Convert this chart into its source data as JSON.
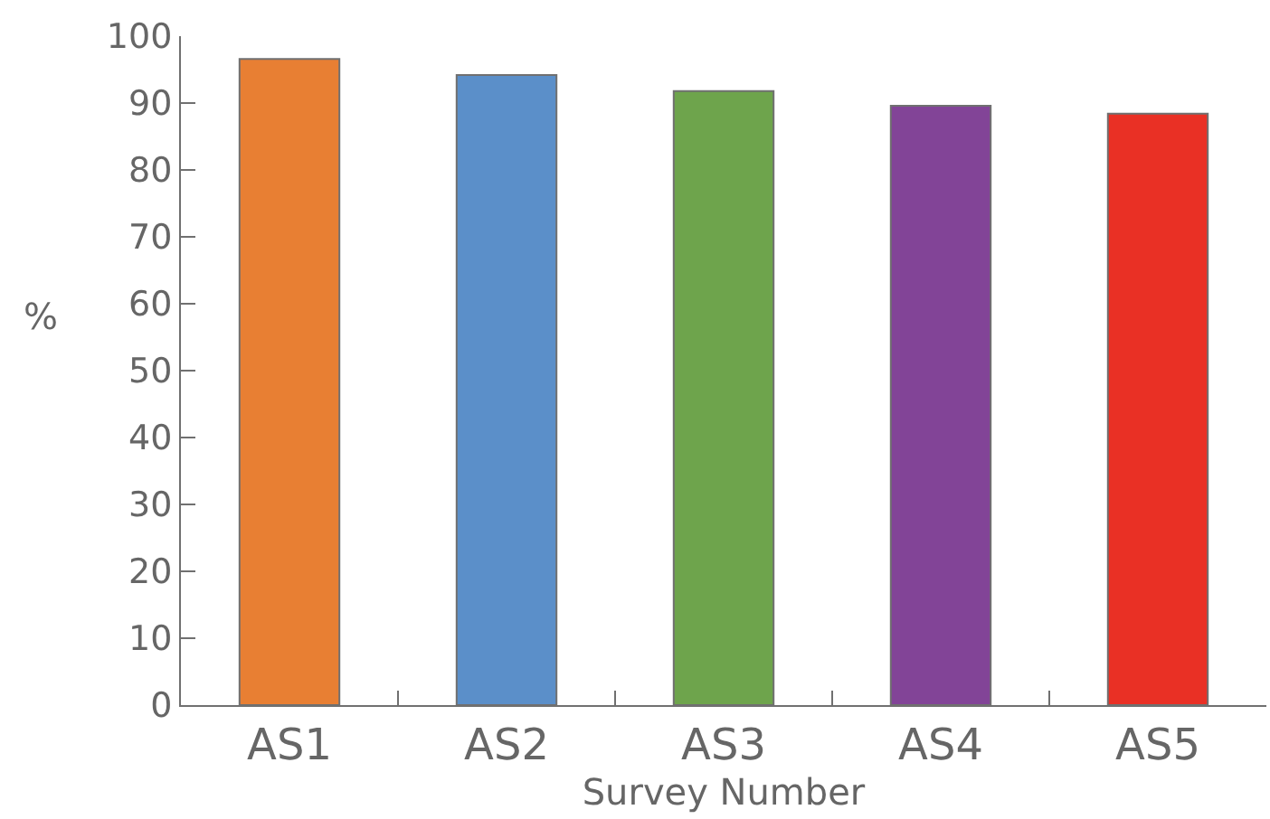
{
  "chart_data": {
    "type": "bar",
    "xlabel": "Survey Number",
    "ylabel": "%",
    "categories": [
      "AS1",
      "AS2",
      "AS3",
      "AS4",
      "AS5"
    ],
    "values": [
      96.6,
      94.2,
      91.8,
      89.6,
      88.4
    ],
    "colors": [
      "#e87f33",
      "#5b8fc9",
      "#6ea44c",
      "#824497",
      "#e93025"
    ],
    "ylim": [
      0,
      100
    ],
    "yticks": [
      0,
      10,
      20,
      30,
      40,
      50,
      60,
      70,
      80,
      90,
      100
    ]
  }
}
